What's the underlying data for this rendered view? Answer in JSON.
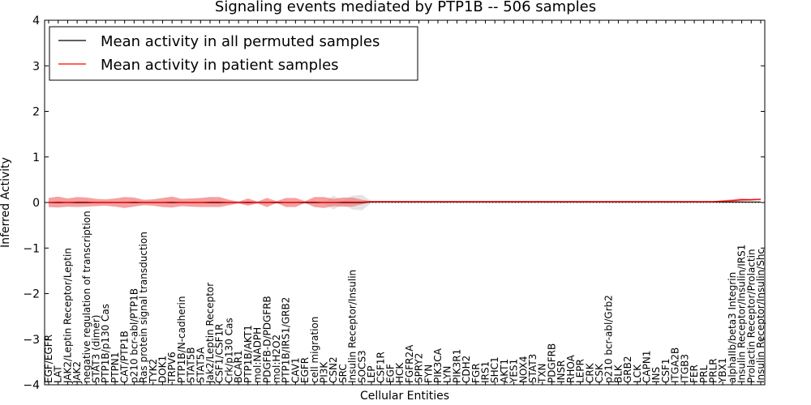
{
  "chart_data": {
    "type": "line",
    "title": "Signaling events mediated by PTP1B -- 506 samples",
    "xlabel": "Cellular Entities",
    "ylabel": "Inferred Activity",
    "ylim": [
      -4,
      4
    ],
    "yticks": [
      -4,
      -3,
      -2,
      -1,
      0,
      1,
      2,
      3,
      4
    ],
    "ytick_labels": [
      "−4",
      "−3",
      "−2",
      "−1",
      "0",
      "1",
      "2",
      "3",
      "4"
    ],
    "grid": false,
    "legend_position": "top-left",
    "categories": [
      "EGF/EGFR",
      "LAT",
      "JAK2/Leptin Receptor/Leptin",
      "JAK2",
      "negative regulation of transcription",
      "STAT3 (dimer)",
      "PTP1B/p130 Cas",
      "PTPN1",
      "CAT/PTP1B",
      "p210 bcr-abl/PTP1B",
      "Ras protein signal transduction",
      "TYK2",
      "DOK1",
      "TRPV6",
      "PTP1B/N-cadherin",
      "STAT5B",
      "STAT5A",
      "Jak2/Leptin Receptor",
      "CSF1/CSF1R",
      "Crk/p130 Cas",
      "BCAR1",
      "PTP1B/AKT1",
      "mol:NADPH",
      "PDGFB-D/PDGFRB",
      "mol:H2O2",
      "PTP1B/IRS1/GRB2",
      "CAV1",
      "EGFR",
      "cell migration",
      "PI3K",
      "CSN2",
      "SRC",
      "Insulin Receptor/Insulin",
      "SOCS3",
      "LEP",
      "CSF1R",
      "EGF",
      "HCK",
      "FGFR2A",
      "SPRY2",
      "FYN",
      "PIK3CA",
      "LYN",
      "PIK3R1",
      "CDH2",
      "FGR",
      "IRS1",
      "SHC1",
      "AKT1",
      "YES1",
      "NOX4",
      "STAT3",
      "TXN",
      "PDGFRB",
      "INSR",
      "RHOA",
      "LEPR",
      "CRK",
      "CSK",
      "p210 bcr-abl/Grb2",
      "BLK",
      "GRB2",
      "LCK",
      "CAPN1",
      "INS",
      "CSF1",
      "ITGA2B",
      "ITGB3",
      "FER",
      "PRL",
      "PRLR",
      "YBX1",
      "alphaIIb/beta3 Integrin",
      "Insulin Receptor/Insulin/IRS1",
      "Prolactin Receptor/Prolactin",
      "Insulin Receptor/Insulin/Shc"
    ],
    "series": [
      {
        "name": "Mean activity in all permuted samples",
        "color": "#000000",
        "values": [
          0.0,
          0.0,
          0.0,
          0.0,
          0.0,
          0.0,
          0.0,
          0.0,
          0.0,
          0.0,
          0.0,
          0.0,
          0.0,
          0.0,
          0.0,
          0.0,
          0.0,
          0.0,
          0.0,
          0.0,
          0.0,
          0.0,
          0.0,
          0.0,
          0.0,
          0.0,
          0.0,
          0.0,
          0.0,
          0.0,
          0.0,
          0.0,
          0.0,
          0.0,
          0.01,
          0.01,
          0.01,
          0.01,
          0.01,
          0.01,
          0.01,
          0.01,
          0.01,
          0.01,
          0.01,
          0.01,
          0.01,
          0.01,
          0.01,
          0.01,
          0.01,
          0.01,
          0.01,
          0.01,
          0.01,
          0.01,
          0.01,
          0.01,
          0.01,
          0.01,
          0.01,
          0.01,
          0.01,
          0.01,
          0.01,
          0.01,
          0.01,
          0.01,
          0.01,
          0.01,
          0.01,
          0.01,
          0.01,
          0.01,
          0.01,
          0.01
        ],
        "band": [
          0.02,
          0.02,
          0.02,
          0.02,
          0.02,
          0.02,
          0.02,
          0.02,
          0.02,
          0.02,
          0.02,
          0.02,
          0.02,
          0.02,
          0.02,
          0.02,
          0.02,
          0.02,
          0.02,
          0.02,
          0.02,
          0.02,
          0.02,
          0.02,
          0.02,
          0.02,
          0.02,
          0.02,
          0.02,
          0.02,
          0.15,
          0.05,
          0.15,
          0.17,
          0.02,
          0.01,
          0.01,
          0.01,
          0.01,
          0.01,
          0.01,
          0.01,
          0.01,
          0.01,
          0.01,
          0.01,
          0.01,
          0.01,
          0.01,
          0.01,
          0.01,
          0.01,
          0.01,
          0.01,
          0.01,
          0.01,
          0.01,
          0.01,
          0.01,
          0.01,
          0.01,
          0.01,
          0.01,
          0.01,
          0.01,
          0.01,
          0.01,
          0.01,
          0.01,
          0.01,
          0.01,
          0.01,
          0.01,
          0.01,
          0.01,
          0.01
        ]
      },
      {
        "name": "Mean activity in patient samples",
        "color": "#ff0000",
        "band_color": "#f08080",
        "values": [
          0.0,
          0.01,
          0.0,
          0.01,
          0.01,
          0.0,
          0.0,
          0.0,
          0.0,
          0.01,
          0.0,
          0.0,
          0.0,
          0.01,
          0.0,
          0.0,
          0.0,
          0.01,
          0.01,
          0.0,
          0.0,
          0.01,
          0.0,
          0.0,
          0.01,
          0.0,
          0.0,
          0.01,
          0.01,
          0.0,
          0.0,
          0.01,
          0.01,
          0.01,
          0.02,
          0.02,
          0.02,
          0.02,
          0.02,
          0.02,
          0.02,
          0.02,
          0.02,
          0.02,
          0.02,
          0.02,
          0.02,
          0.02,
          0.02,
          0.02,
          0.02,
          0.02,
          0.02,
          0.02,
          0.02,
          0.02,
          0.02,
          0.02,
          0.02,
          0.02,
          0.02,
          0.02,
          0.02,
          0.02,
          0.02,
          0.02,
          0.02,
          0.02,
          0.02,
          0.02,
          0.02,
          0.03,
          0.04,
          0.06,
          0.06,
          0.07
        ],
        "band": [
          0.1,
          0.12,
          0.09,
          0.11,
          0.1,
          0.08,
          0.07,
          0.09,
          0.12,
          0.1,
          0.06,
          0.07,
          0.1,
          0.12,
          0.08,
          0.09,
          0.1,
          0.11,
          0.11,
          0.06,
          0.02,
          0.08,
          0.02,
          0.1,
          0.02,
          0.1,
          0.1,
          0.02,
          0.11,
          0.12,
          0.08,
          0.1,
          0.1,
          0.05,
          0.01,
          0.01,
          0.01,
          0.01,
          0.01,
          0.01,
          0.01,
          0.01,
          0.01,
          0.01,
          0.01,
          0.01,
          0.01,
          0.01,
          0.01,
          0.01,
          0.01,
          0.01,
          0.01,
          0.01,
          0.01,
          0.01,
          0.01,
          0.01,
          0.01,
          0.01,
          0.01,
          0.01,
          0.01,
          0.01,
          0.01,
          0.01,
          0.01,
          0.01,
          0.01,
          0.01,
          0.01,
          0.02,
          0.03,
          0.03,
          0.02,
          0.02
        ]
      }
    ]
  }
}
